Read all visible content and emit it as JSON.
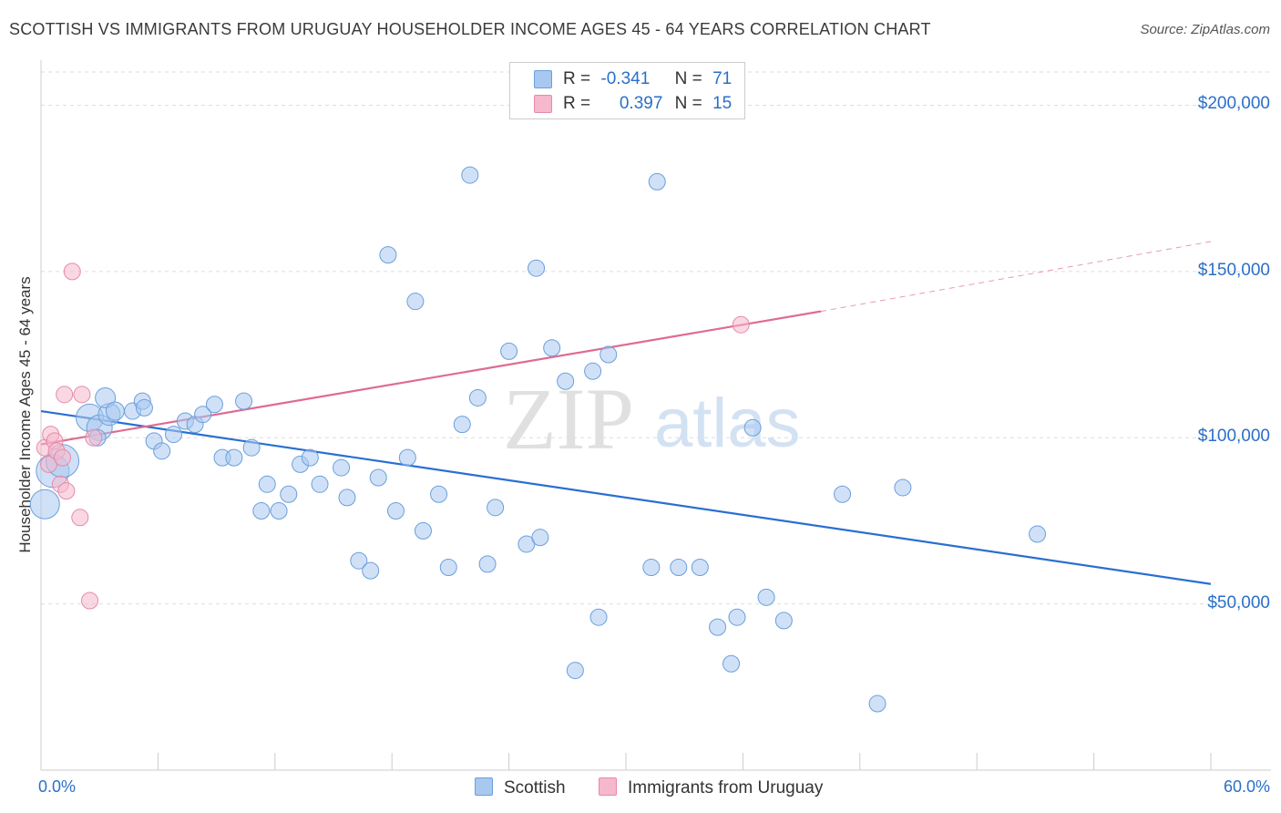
{
  "title": "SCOTTISH VS IMMIGRANTS FROM URUGUAY HOUSEHOLDER INCOME AGES 45 - 64 YEARS CORRELATION CHART",
  "source": "Source: ZipAtlas.com",
  "watermark": {
    "zip": "ZIP",
    "atlas": "atlas"
  },
  "legend_top": {
    "rows": [
      {
        "r_label": "R =",
        "r_value": "-0.341",
        "n_label": "N =",
        "n_value": "71"
      },
      {
        "r_label": "R =",
        "r_value": "0.397",
        "n_label": "N =",
        "n_value": "15"
      }
    ]
  },
  "legend_bottom": {
    "items": [
      "Scottish",
      "Immigrants from Uruguay"
    ]
  },
  "colors": {
    "blue_fill": "#a9c8f0",
    "blue_stroke": "#6a9fdc",
    "blue_line": "#2a6fd1",
    "pink_fill": "#f5b8cc",
    "pink_stroke": "#e58aa8",
    "pink_line": "#e06a91",
    "grid": "#dddddd",
    "axis_text": "#2a6fc9"
  },
  "chart_data": {
    "type": "scatter",
    "title": "SCOTTISH VS IMMIGRANTS FROM URUGUAY HOUSEHOLDER INCOME AGES 45 - 64 YEARS CORRELATION CHART",
    "xlabel": "",
    "ylabel": "Householder Income Ages 45 - 64 years",
    "xlim": [
      0,
      60
    ],
    "ylim": [
      0,
      210000
    ],
    "x_tick_labels": [
      "0.0%",
      "60.0%"
    ],
    "y_ticks": [
      50000,
      100000,
      150000,
      200000
    ],
    "y_tick_labels": [
      "$50,000",
      "$100,000",
      "$150,000",
      "$200,000"
    ],
    "grid": true,
    "legend_position": "top-center",
    "series": [
      {
        "name": "Scottish",
        "R": -0.341,
        "N": 71,
        "trend": {
          "x": [
            0,
            60
          ],
          "y": [
            108000,
            56000
          ]
        },
        "points": [
          {
            "x": 0.2,
            "y": 80000,
            "s": 16
          },
          {
            "x": 0.6,
            "y": 90000,
            "s": 18
          },
          {
            "x": 1.1,
            "y": 93000,
            "s": 18
          },
          {
            "x": 2.5,
            "y": 106000,
            "s": 15
          },
          {
            "x": 3.0,
            "y": 103000,
            "s": 14
          },
          {
            "x": 3.5,
            "y": 107000,
            "s": 12
          },
          {
            "x": 3.3,
            "y": 112000,
            "s": 11
          },
          {
            "x": 3.8,
            "y": 108000,
            "s": 10
          },
          {
            "x": 4.7,
            "y": 108000,
            "s": 9
          },
          {
            "x": 5.2,
            "y": 111000,
            "s": 9
          },
          {
            "x": 5.3,
            "y": 109000,
            "s": 9
          },
          {
            "x": 5.8,
            "y": 99000,
            "s": 9
          },
          {
            "x": 6.2,
            "y": 96000,
            "s": 9
          },
          {
            "x": 6.8,
            "y": 101000,
            "s": 9
          },
          {
            "x": 7.4,
            "y": 105000,
            "s": 9
          },
          {
            "x": 7.9,
            "y": 104000,
            "s": 9
          },
          {
            "x": 8.3,
            "y": 107000,
            "s": 9
          },
          {
            "x": 8.9,
            "y": 110000,
            "s": 9
          },
          {
            "x": 9.3,
            "y": 94000,
            "s": 9
          },
          {
            "x": 9.9,
            "y": 94000,
            "s": 9
          },
          {
            "x": 10.4,
            "y": 111000,
            "s": 9
          },
          {
            "x": 10.8,
            "y": 97000,
            "s": 9
          },
          {
            "x": 11.3,
            "y": 78000,
            "s": 9
          },
          {
            "x": 11.6,
            "y": 86000,
            "s": 9
          },
          {
            "x": 12.2,
            "y": 78000,
            "s": 9
          },
          {
            "x": 12.7,
            "y": 83000,
            "s": 9
          },
          {
            "x": 13.3,
            "y": 92000,
            "s": 9
          },
          {
            "x": 13.8,
            "y": 94000,
            "s": 9
          },
          {
            "x": 14.3,
            "y": 86000,
            "s": 9
          },
          {
            "x": 15.4,
            "y": 91000,
            "s": 9
          },
          {
            "x": 15.7,
            "y": 82000,
            "s": 9
          },
          {
            "x": 16.3,
            "y": 63000,
            "s": 9
          },
          {
            "x": 16.9,
            "y": 60000,
            "s": 9
          },
          {
            "x": 17.3,
            "y": 88000,
            "s": 9
          },
          {
            "x": 17.8,
            "y": 155000,
            "s": 9
          },
          {
            "x": 18.2,
            "y": 78000,
            "s": 9
          },
          {
            "x": 18.8,
            "y": 94000,
            "s": 9
          },
          {
            "x": 19.2,
            "y": 141000,
            "s": 9
          },
          {
            "x": 19.6,
            "y": 72000,
            "s": 9
          },
          {
            "x": 20.4,
            "y": 83000,
            "s": 9
          },
          {
            "x": 20.9,
            "y": 61000,
            "s": 9
          },
          {
            "x": 21.6,
            "y": 104000,
            "s": 9
          },
          {
            "x": 22.0,
            "y": 179000,
            "s": 9
          },
          {
            "x": 22.4,
            "y": 112000,
            "s": 9
          },
          {
            "x": 22.9,
            "y": 62000,
            "s": 9
          },
          {
            "x": 23.3,
            "y": 79000,
            "s": 9
          },
          {
            "x": 24.0,
            "y": 126000,
            "s": 9
          },
          {
            "x": 24.9,
            "y": 68000,
            "s": 9
          },
          {
            "x": 25.4,
            "y": 151000,
            "s": 9
          },
          {
            "x": 25.6,
            "y": 70000,
            "s": 9
          },
          {
            "x": 26.2,
            "y": 127000,
            "s": 9
          },
          {
            "x": 26.9,
            "y": 117000,
            "s": 9
          },
          {
            "x": 27.4,
            "y": 30000,
            "s": 9
          },
          {
            "x": 28.3,
            "y": 120000,
            "s": 9
          },
          {
            "x": 28.6,
            "y": 46000,
            "s": 9
          },
          {
            "x": 29.1,
            "y": 125000,
            "s": 9
          },
          {
            "x": 31.3,
            "y": 61000,
            "s": 9
          },
          {
            "x": 31.6,
            "y": 177000,
            "s": 9
          },
          {
            "x": 32.7,
            "y": 61000,
            "s": 9
          },
          {
            "x": 33.8,
            "y": 61000,
            "s": 9
          },
          {
            "x": 34.7,
            "y": 43000,
            "s": 9
          },
          {
            "x": 35.4,
            "y": 32000,
            "s": 9
          },
          {
            "x": 35.7,
            "y": 46000,
            "s": 9
          },
          {
            "x": 36.5,
            "y": 103000,
            "s": 9
          },
          {
            "x": 37.2,
            "y": 52000,
            "s": 9
          },
          {
            "x": 38.1,
            "y": 45000,
            "s": 9
          },
          {
            "x": 41.1,
            "y": 83000,
            "s": 9
          },
          {
            "x": 42.9,
            "y": 20000,
            "s": 9
          },
          {
            "x": 44.2,
            "y": 85000,
            "s": 9
          },
          {
            "x": 51.1,
            "y": 71000,
            "s": 9
          },
          {
            "x": 2.9,
            "y": 100000,
            "s": 9
          }
        ]
      },
      {
        "name": "Immigrants from Uruguay",
        "R": 0.397,
        "N": 15,
        "trend": {
          "x": [
            0,
            40
          ],
          "y": [
            98000,
            138000
          ]
        },
        "trend_dashed": {
          "x": [
            40,
            60
          ],
          "y": [
            138000,
            159000
          ]
        },
        "points": [
          {
            "x": 0.2,
            "y": 97000,
            "s": 9
          },
          {
            "x": 0.4,
            "y": 92000,
            "s": 9
          },
          {
            "x": 0.5,
            "y": 101000,
            "s": 9
          },
          {
            "x": 0.7,
            "y": 99000,
            "s": 9
          },
          {
            "x": 0.8,
            "y": 96000,
            "s": 9
          },
          {
            "x": 1.0,
            "y": 86000,
            "s": 9
          },
          {
            "x": 1.1,
            "y": 94000,
            "s": 9
          },
          {
            "x": 1.2,
            "y": 113000,
            "s": 9
          },
          {
            "x": 1.3,
            "y": 84000,
            "s": 9
          },
          {
            "x": 1.6,
            "y": 150000,
            "s": 9
          },
          {
            "x": 2.0,
            "y": 76000,
            "s": 9
          },
          {
            "x": 2.1,
            "y": 113000,
            "s": 9
          },
          {
            "x": 2.5,
            "y": 51000,
            "s": 9
          },
          {
            "x": 2.7,
            "y": 100000,
            "s": 9
          },
          {
            "x": 35.9,
            "y": 134000,
            "s": 9
          }
        ]
      }
    ]
  }
}
